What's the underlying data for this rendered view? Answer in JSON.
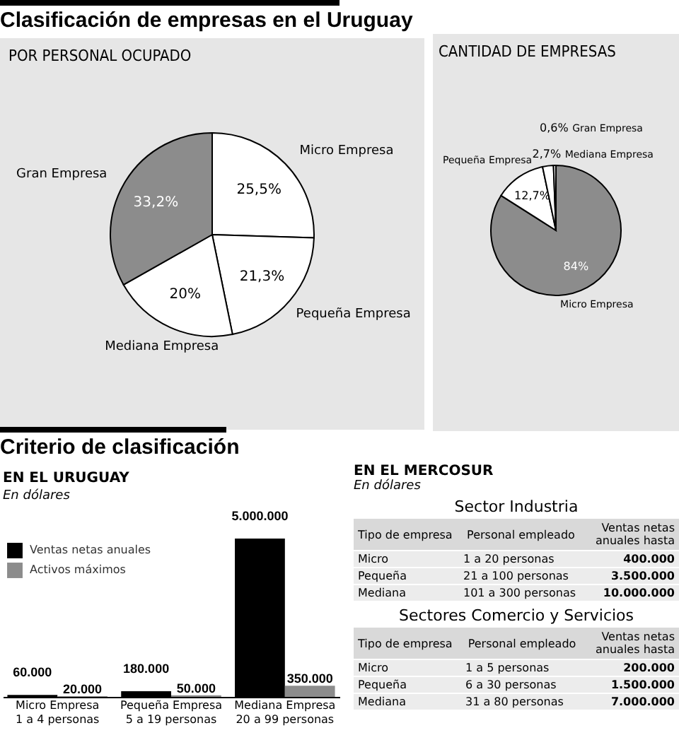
{
  "chart_data": [
    {
      "type": "pie",
      "title": "Clasificación de empresas en el Uruguay",
      "subtitle": "POR PERSONAL OCUPADO",
      "categories": [
        "Micro Empresa",
        "Pequeña Empresa",
        "Mediana Empresa",
        "Gran Empresa"
      ],
      "values": [
        25.5,
        21.3,
        20,
        33.2
      ],
      "colors": [
        "#ffffff",
        "#ffffff",
        "#ffffff",
        "#8c8c8c"
      ],
      "value_labels": [
        "25,5%",
        "21,3%",
        "20%",
        "33,2%"
      ]
    },
    {
      "type": "pie",
      "title": "CANTIDAD DE EMPRESAS",
      "categories": [
        "Micro Empresa",
        "Pequeña Empresa",
        "Mediana Empresa",
        "Gran Empresa"
      ],
      "values": [
        84,
        12.7,
        2.7,
        0.6
      ],
      "colors": [
        "#8c8c8c",
        "#ffffff",
        "#ffffff",
        "#ffffff"
      ],
      "value_labels": [
        "84%",
        "12,7%",
        "2,7%",
        "0,6%"
      ]
    },
    {
      "type": "bar",
      "title": "Criterio de clasificación",
      "subtitle": "EN EL URUGUAY",
      "annotations": [
        "En dólares"
      ],
      "categories": [
        "Micro Empresa\n1 a 4 personas",
        "Pequeña Empresa\n5 a 19 personas",
        "Mediana Empresa\n20 a 99 personas"
      ],
      "legend": "top left",
      "series": [
        {
          "name": "Ventas netas anuales",
          "color": "#000000",
          "values": [
            60000,
            180000,
            5000000
          ],
          "value_labels": [
            "60.000",
            "180.000",
            "5.000.000"
          ]
        },
        {
          "name": "Activos máximos",
          "color": "#8c8c8c",
          "values": [
            20000,
            50000,
            350000
          ],
          "value_labels": [
            "20.000",
            "50.000",
            "350.000"
          ]
        }
      ]
    },
    {
      "type": "other",
      "title": "EN EL MERCOSUR",
      "subtitle": "En dólares",
      "annotations": [
        "Sector Industria",
        "Tipo de empresa",
        "Personal empleado",
        "Ventas netas anuales hasta",
        "Micro",
        "1 a 20 personas",
        "400.000",
        "Pequeña",
        "21 a 100 personas",
        "3.500.000",
        "Mediana",
        "101 a 300 personas",
        "10.000.000",
        "Sectores Comercio y Servicios",
        "Tipo de empresa",
        "Personal empleado",
        "Ventas netas anuales hasta",
        "Micro",
        "1 a 5 personas",
        "200.000",
        "Pequeña",
        "6 a 30 personas",
        "1.500.000",
        "Mediana",
        "31 a 80 personas",
        "7.000.000"
      ]
    }
  ]
}
